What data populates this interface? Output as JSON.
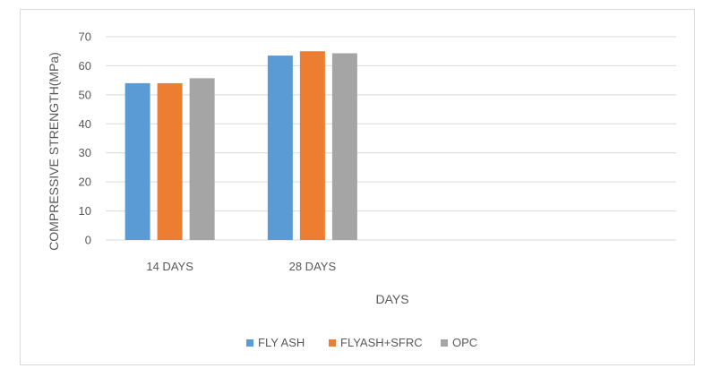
{
  "chart_data": {
    "type": "bar",
    "title": "",
    "xlabel": "DAYS",
    "ylabel": "COMPRESSIVE STRENGTH(MPa)",
    "categories": [
      "14 DAYS",
      "28 DAYS",
      "",
      ""
    ],
    "series": [
      {
        "name": "FLY ASH",
        "color": "#5b9bd5",
        "values": [
          54,
          63.5,
          null,
          null
        ]
      },
      {
        "name": "FLYASH+SFRC",
        "color": "#ed7d31",
        "values": [
          54,
          65,
          null,
          null
        ]
      },
      {
        "name": "OPC",
        "color": "#a5a5a5",
        "values": [
          55.7,
          64.3,
          null,
          null
        ]
      }
    ],
    "ylim": [
      0,
      70
    ],
    "yticks": [
      0,
      10,
      20,
      30,
      40,
      50,
      60,
      70
    ],
    "grid": true,
    "legend": "bottom"
  }
}
